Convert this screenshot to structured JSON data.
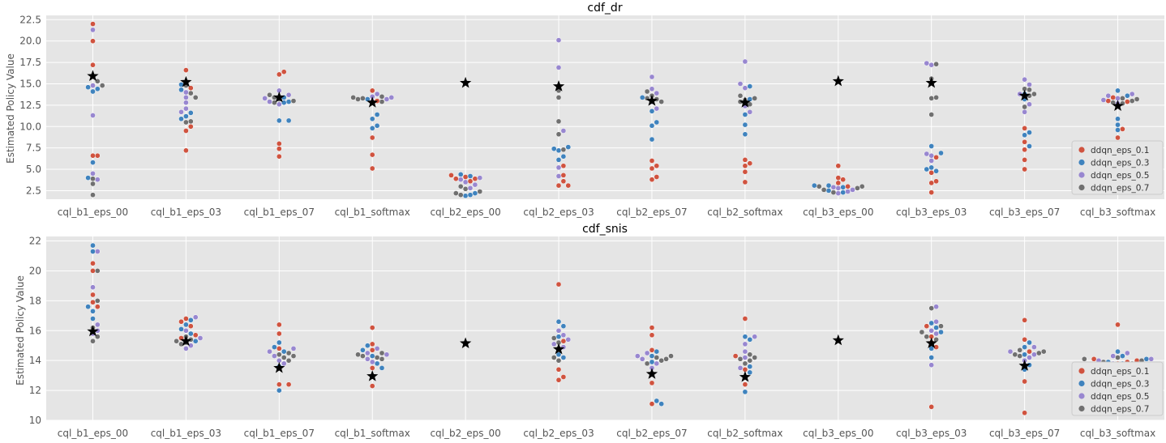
{
  "colors": {
    "ddqn_eps_0.1": "#d0533f",
    "ddqn_eps_0.3": "#3f83be",
    "ddqn_eps_0.5": "#9887d0",
    "ddqn_eps_0.7": "#707070",
    "panel_bg": "#e5e5e5",
    "grid": "#ffffff",
    "star": "#000000"
  },
  "legend": [
    "ddqn_eps_0.1",
    "ddqn_eps_0.3",
    "ddqn_eps_0.5",
    "ddqn_eps_0.7"
  ],
  "chart_data": [
    {
      "type": "scatter",
      "subtype": "swarm",
      "title": "cdf_dr",
      "ylabel": "Estimated Policy Value",
      "xlabel": "",
      "ylim": [
        1.5,
        23.0
      ],
      "yticks": [
        "2.5",
        "5.0",
        "7.5",
        "10.0",
        "12.5",
        "15.0",
        "17.5",
        "20.0",
        "22.5"
      ],
      "grid": true,
      "legend_position": "bottom-right",
      "categories": [
        "cql_b1_eps_00",
        "cql_b1_eps_03",
        "cql_b1_eps_07",
        "cql_b1_softmax",
        "cql_b2_eps_00",
        "cql_b2_eps_03",
        "cql_b2_eps_07",
        "cql_b2_softmax",
        "cql_b3_eps_00",
        "cql_b3_eps_03",
        "cql_b3_eps_07",
        "cql_b3_softmax"
      ],
      "reference_star": [
        15.9,
        15.2,
        13.4,
        12.8,
        15.1,
        14.7,
        13.0,
        12.8,
        15.3,
        15.1,
        13.6,
        12.4
      ],
      "series": [
        {
          "name": "ddqn_eps_0.1",
          "values": [
            [
              22.0,
              20.0,
              17.2,
              6.6,
              6.6
            ],
            [
              16.6,
              14.5,
              10.0,
              9.5,
              7.2
            ],
            [
              16.4,
              16.1,
              8.0,
              7.4,
              6.5
            ],
            [
              14.2,
              13.0,
              8.7,
              6.7,
              5.1
            ],
            [
              4.3,
              4.1,
              3.9,
              3.9,
              3.6
            ],
            [
              5.4,
              4.3,
              3.6,
              3.1,
              3.1
            ],
            [
              6.0,
              5.4,
              5.1,
              4.1,
              3.8
            ],
            [
              6.1,
              5.7,
              5.4,
              4.7,
              3.5
            ],
            [
              5.4,
              4.0,
              3.8,
              3.4,
              3.0
            ],
            [
              6.4,
              4.6,
              3.6,
              3.4,
              2.3
            ],
            [
              9.8,
              8.2,
              7.3,
              6.1,
              5.0
            ],
            [
              9.7,
              8.7,
              13.0,
              12.9,
              13.4
            ]
          ]
        },
        {
          "name": "ddqn_eps_0.3",
          "values": [
            [
              14.6,
              14.1,
              14.4,
              5.8,
              4.0
            ],
            [
              14.9,
              14.3,
              11.6,
              11.2,
              10.9
            ],
            [
              13.4,
              12.9,
              10.7,
              10.7,
              12.8
            ],
            [
              11.4,
              10.9,
              10.1,
              9.8,
              13.2
            ],
            [
              4.4,
              4.2,
              2.2,
              2.0,
              1.9
            ],
            [
              7.6,
              7.4,
              7.2,
              6.5,
              6.1
            ],
            [
              13.4,
              11.8,
              10.5,
              10.1,
              8.5
            ],
            [
              14.7,
              13.2,
              11.4,
              10.2,
              9.1
            ],
            [
              3.1,
              3.1,
              2.9,
              2.5,
              2.3
            ],
            [
              7.7,
              6.9,
              5.2,
              5.0,
              4.8
            ],
            [
              13.8,
              13.2,
              9.3,
              9.0,
              7.7
            ],
            [
              14.2,
              13.6,
              10.9,
              10.2,
              9.6
            ]
          ]
        },
        {
          "name": "ddqn_eps_0.5",
          "values": [
            [
              21.3,
              14.8,
              11.3,
              4.5,
              3.8
            ],
            [
              14.0,
              13.4,
              12.8,
              12.1,
              11.7
            ],
            [
              14.2,
              13.7,
              13.3,
              12.9,
              12.6
            ],
            [
              13.8,
              13.5,
              13.4,
              13.2,
              12.9
            ],
            [
              4.0,
              3.8,
              3.5,
              3.2,
              2.8
            ],
            [
              20.1,
              16.9,
              9.5,
              5.2,
              4.2
            ],
            [
              15.8,
              14.4,
              13.9,
              12.9,
              12.1
            ],
            [
              17.6,
              15.0,
              14.5,
              12.4,
              11.7
            ],
            [
              2.9,
              2.8,
              2.6,
              2.4,
              2.2
            ],
            [
              17.4,
              17.2,
              6.8,
              6.6,
              6.0
            ],
            [
              15.5,
              14.9,
              13.8,
              12.6,
              11.7
            ],
            [
              13.8,
              13.6,
              13.3,
              13.1,
              12.7
            ]
          ]
        },
        {
          "name": "ddqn_eps_0.7",
          "values": [
            [
              15.3,
              14.8,
              3.9,
              3.3,
              2.0
            ],
            [
              14.8,
              13.9,
              13.4,
              10.6,
              10.5
            ],
            [
              13.7,
              13.4,
              13.2,
              13.0,
              12.8
            ],
            [
              13.5,
              13.4,
              13.3,
              13.2,
              12.9
            ],
            [
              3.0,
              2.7,
              2.4,
              2.2,
              2.0
            ],
            [
              14.2,
              13.4,
              10.6,
              9.1,
              7.3
            ],
            [
              14.1,
              13.6,
              13.3,
              13.2,
              12.9
            ],
            [
              13.6,
              13.3,
              13.1,
              12.9,
              12.6
            ],
            [
              3.0,
              3.0,
              2.8,
              2.6,
              2.3
            ],
            [
              17.3,
              15.6,
              13.4,
              13.3,
              11.4
            ],
            [
              14.4,
              14.3,
              13.8,
              13.6,
              12.3
            ],
            [
              13.3,
              13.2,
              13.0,
              12.8,
              12.7
            ]
          ]
        }
      ]
    },
    {
      "type": "scatter",
      "subtype": "swarm",
      "title": "cdf_snis",
      "ylabel": "Estimated Policy Value",
      "xlabel": "",
      "ylim": [
        10.0,
        22.3
      ],
      "yticks": [
        "10",
        "12",
        "14",
        "16",
        "18",
        "20",
        "22"
      ],
      "grid": true,
      "legend_position": "bottom-right",
      "categories": [
        "cql_b1_eps_00",
        "cql_b1_eps_03",
        "cql_b1_eps_07",
        "cql_b1_softmax",
        "cql_b2_eps_00",
        "cql_b2_eps_03",
        "cql_b2_eps_07",
        "cql_b2_softmax",
        "cql_b3_eps_00",
        "cql_b3_eps_03",
        "cql_b3_eps_07",
        "cql_b3_softmax"
      ],
      "reference_star": [
        15.95,
        15.3,
        13.5,
        12.95,
        15.15,
        14.75,
        13.1,
        12.9,
        15.35,
        15.15,
        13.65,
        12.5
      ],
      "series": [
        {
          "name": "ddqn_eps_0.1",
          "values": [
            [
              20.5,
              20.0,
              18.4,
              17.9,
              17.6
            ],
            [
              16.8,
              16.6,
              16.3,
              15.7,
              15.5
            ],
            [
              16.4,
              15.8,
              14.8,
              12.4,
              12.4
            ],
            [
              16.2,
              15.1,
              14.7,
              13.5,
              12.3
            ],
            [],
            [
              19.1,
              15.3,
              13.4,
              12.9,
              12.7
            ],
            [
              16.2,
              15.7,
              14.7,
              12.5,
              11.1
            ],
            [
              16.8,
              14.3,
              13.4,
              12.9,
              12.4
            ],
            [],
            [
              16.3,
              15.6,
              15.2,
              14.9,
              10.9
            ],
            [
              16.7,
              15.4,
              14.6,
              12.6,
              10.5
            ],
            [
              16.4,
              14.1,
              14.0,
              13.9,
              13.8
            ]
          ]
        },
        {
          "name": "ddqn_eps_0.3",
          "values": [
            [
              21.7,
              21.3,
              17.6,
              17.3,
              16.8
            ],
            [
              16.7,
              16.4,
              16.1,
              15.8,
              15.3
            ],
            [
              15.2,
              14.9,
              14.6,
              13.6,
              12.0
            ],
            [
              15.0,
              14.7,
              14.3,
              13.8,
              13.5
            ],
            [],
            [
              16.6,
              16.3,
              15.6,
              14.4,
              14.2
            ],
            [
              14.6,
              14.3,
              13.9,
              11.3,
              11.1
            ],
            [
              15.6,
              15.4,
              13.6,
              13.2,
              11.9
            ],
            [],
            [
              16.5,
              16.2,
              15.9,
              14.8,
              14.2
            ],
            [
              15.2,
              14.9,
              14.4,
              13.7,
              13.4
            ],
            [
              14.6,
              14.3,
              14.1,
              13.9,
              13.8
            ]
          ]
        },
        {
          "name": "ddqn_eps_0.5",
          "values": [
            [
              21.3,
              18.9,
              16.4,
              16.0,
              15.8
            ],
            [
              16.9,
              16.0,
              15.5,
              15.0,
              14.8
            ],
            [
              14.8,
              14.6,
              14.3,
              14.0,
              13.8
            ],
            [
              14.8,
              14.5,
              14.4,
              14.1,
              13.9
            ],
            [],
            [
              16.0,
              15.7,
              15.4,
              15.1,
              14.9
            ],
            [
              14.5,
              14.3,
              14.1,
              13.8,
              13.5
            ],
            [
              15.6,
              15.1,
              14.6,
              14.2,
              13.5
            ],
            [],
            [
              17.6,
              16.6,
              16.0,
              15.8,
              13.7
            ],
            [
              14.9,
              14.6,
              14.4,
              14.2,
              14.0
            ],
            [
              14.5,
              14.3,
              14.1,
              14.0,
              13.8
            ]
          ]
        },
        {
          "name": "ddqn_eps_0.7",
          "values": [
            [
              20.0,
              18.0,
              16.2,
              15.6,
              15.3
            ],
            [
              15.6,
              15.4,
              15.3,
              15.2,
              15.1
            ],
            [
              14.5,
              14.4,
              14.3,
              14.2,
              14.0
            ],
            [
              14.5,
              14.4,
              14.3,
              14.2,
              14.1
            ],
            [],
            [
              15.5,
              15.2,
              14.8,
              14.2,
              14.0
            ],
            [
              14.3,
              14.2,
              14.1,
              14.0,
              13.8
            ],
            [
              14.4,
              14.2,
              14.1,
              14.0,
              13.8
            ],
            [],
            [
              17.5,
              16.3,
              15.9,
              15.6,
              15.4
            ],
            [
              14.7,
              14.6,
              14.5,
              14.4,
              14.3
            ],
            [
              14.2,
              14.1,
              14.0,
              13.9,
              13.8
            ]
          ]
        }
      ]
    }
  ]
}
